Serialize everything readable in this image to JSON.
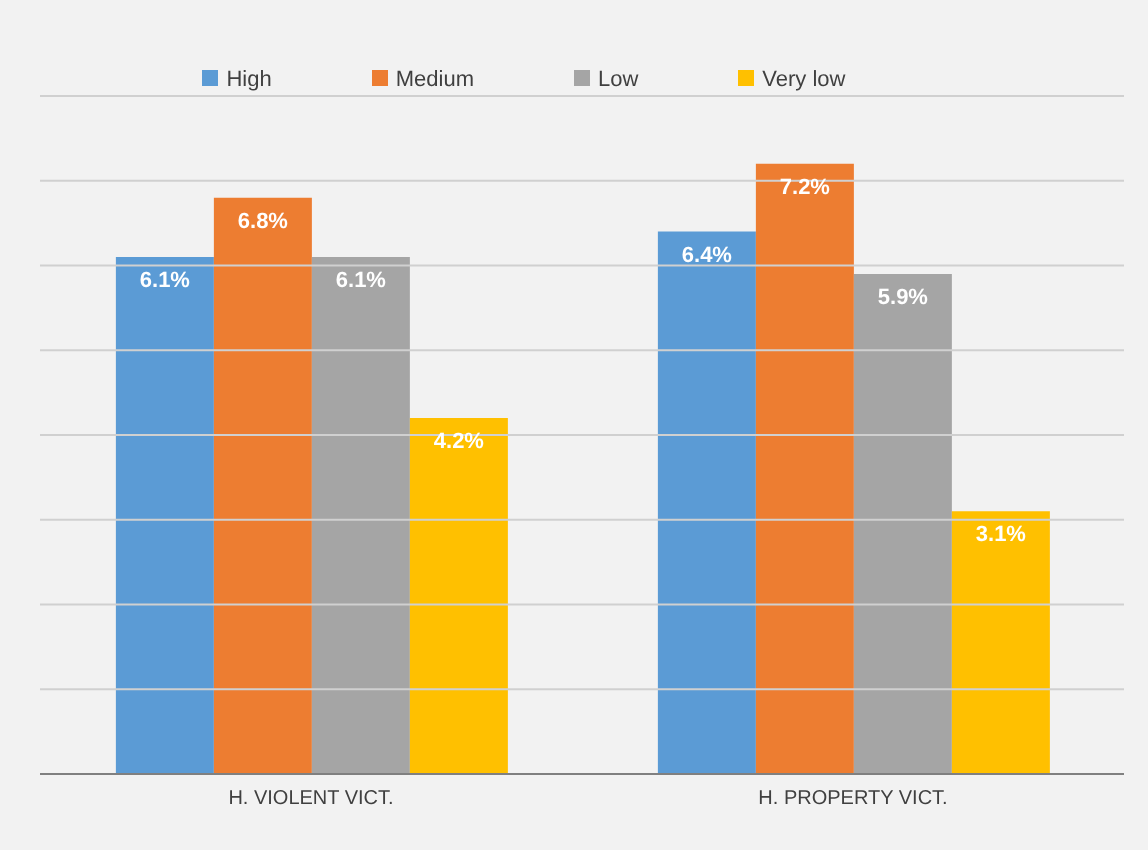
{
  "chart_data": {
    "type": "bar",
    "categories": [
      "H. VIOLENT VICT.",
      "H. PROPERTY VICT."
    ],
    "series": [
      {
        "name": "High",
        "color": "#5b9bd5",
        "values": [
          6.1,
          6.4
        ],
        "value_labels": [
          "6.1%",
          "6.4%"
        ]
      },
      {
        "name": "Medium",
        "color": "#ed7d31",
        "values": [
          6.8,
          7.2
        ],
        "value_labels": [
          "6.8%",
          "7.2%"
        ]
      },
      {
        "name": "Low",
        "color": "#a5a5a5",
        "values": [
          6.1,
          5.9
        ],
        "value_labels": [
          "6.1%",
          "5.9%"
        ]
      },
      {
        "name": "Very low",
        "color": "#ffc000",
        "values": [
          4.2,
          3.1
        ],
        "value_labels": [
          "4.2%",
          "3.1%"
        ]
      }
    ],
    "ylim": [
      0,
      8
    ],
    "yticks": [
      {
        "value": 0,
        "label": null
      },
      {
        "value": 1,
        "label": null
      },
      {
        "value": 2,
        "label": null
      },
      {
        "value": 3,
        "label": null
      },
      {
        "value": 4,
        "label": null
      },
      {
        "value": 5,
        "label": null
      },
      {
        "value": 6,
        "label": null
      },
      {
        "value": 7,
        "label": null
      },
      {
        "value": 8,
        "label": null
      }
    ],
    "tick_labels": "x",
    "grid": "y",
    "legend": "top"
  }
}
